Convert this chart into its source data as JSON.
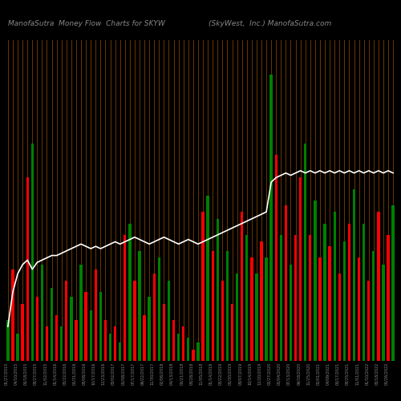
{
  "title_left": "ManofaSutra  Money Flow  Charts for SKYW",
  "title_right": "(SkyWest,  Inc.) ManofaSutra.com",
  "background_color": "#000000",
  "grid_line_color": "#8B4500",
  "line_color": "#ffffff",
  "heights_raw": [
    18,
    40,
    12,
    25,
    80,
    95,
    28,
    42,
    15,
    32,
    20,
    15,
    35,
    28,
    18,
    42,
    30,
    22,
    40,
    30,
    18,
    12,
    15,
    8,
    55,
    60,
    35,
    48,
    20,
    28,
    38,
    45,
    25,
    35,
    18,
    12,
    15,
    10,
    5,
    8,
    65,
    72,
    48,
    62,
    35,
    48,
    25,
    38,
    65,
    55,
    45,
    38,
    52,
    45,
    125,
    90,
    55,
    68,
    42,
    55,
    80,
    95,
    55,
    70,
    45,
    60,
    50,
    65,
    38,
    52,
    60,
    75,
    45,
    60,
    35,
    48,
    65,
    42,
    55,
    68
  ],
  "colors_raw": [
    "green",
    "red",
    "green",
    "red",
    "red",
    "green",
    "red",
    "green",
    "red",
    "green",
    "red",
    "green",
    "red",
    "green",
    "red",
    "green",
    "red",
    "green",
    "red",
    "green",
    "red",
    "green",
    "red",
    "green",
    "red",
    "green",
    "red",
    "green",
    "red",
    "green",
    "red",
    "green",
    "red",
    "green",
    "red",
    "green",
    "red",
    "green",
    "red",
    "green",
    "red",
    "green",
    "red",
    "green",
    "red",
    "green",
    "red",
    "green",
    "red",
    "green",
    "red",
    "green",
    "red",
    "green",
    "green",
    "red",
    "green",
    "red",
    "green",
    "red",
    "red",
    "green",
    "red",
    "green",
    "red",
    "green",
    "red",
    "green",
    "red",
    "green",
    "red",
    "green",
    "red",
    "green",
    "red",
    "green",
    "red",
    "green",
    "red",
    "green"
  ],
  "line_y_raw": [
    15,
    30,
    38,
    42,
    44,
    40,
    43,
    44,
    45,
    46,
    46,
    47,
    48,
    49,
    50,
    51,
    50,
    49,
    50,
    49,
    50,
    51,
    52,
    51,
    52,
    53,
    54,
    53,
    52,
    51,
    52,
    53,
    54,
    53,
    52,
    51,
    52,
    53,
    52,
    51,
    52,
    53,
    54,
    55,
    56,
    57,
    58,
    59,
    60,
    61,
    62,
    63,
    64,
    65,
    78,
    80,
    81,
    82,
    81,
    82,
    83,
    82,
    83,
    82,
    83,
    82,
    83,
    82,
    83,
    82,
    83,
    82,
    83,
    82,
    83,
    82,
    83,
    82,
    83,
    82
  ],
  "dates": [
    "01/27/2015",
    "04/10/2015",
    "06/18/2015",
    "08/27/2015",
    "11/02/2015",
    "01/14/2016",
    "03/22/2016",
    "05/31/2016",
    "08/08/2016",
    "10/17/2016",
    "12/23/2016",
    "03/02/2017",
    "05/08/2017",
    "07/17/2017",
    "09/22/2017",
    "11/30/2017",
    "02/06/2018",
    "04/13/2018",
    "06/21/2018",
    "08/28/2018",
    "11/05/2018",
    "01/14/2019",
    "03/22/2019",
    "05/30/2019",
    "08/07/2019",
    "10/14/2019",
    "12/20/2019",
    "02/27/2020",
    "05/04/2020",
    "07/13/2020",
    "09/18/2020",
    "11/25/2020",
    "02/01/2021",
    "04/09/2021",
    "06/17/2021",
    "08/25/2021",
    "11/01/2021",
    "01/10/2022",
    "03/18/2022",
    "05/26/2022"
  ],
  "n_bars": 80,
  "title_fontsize": 6.5,
  "xlabel_fontsize": 3.5,
  "bar_width": 0.55,
  "ylim_max": 140
}
